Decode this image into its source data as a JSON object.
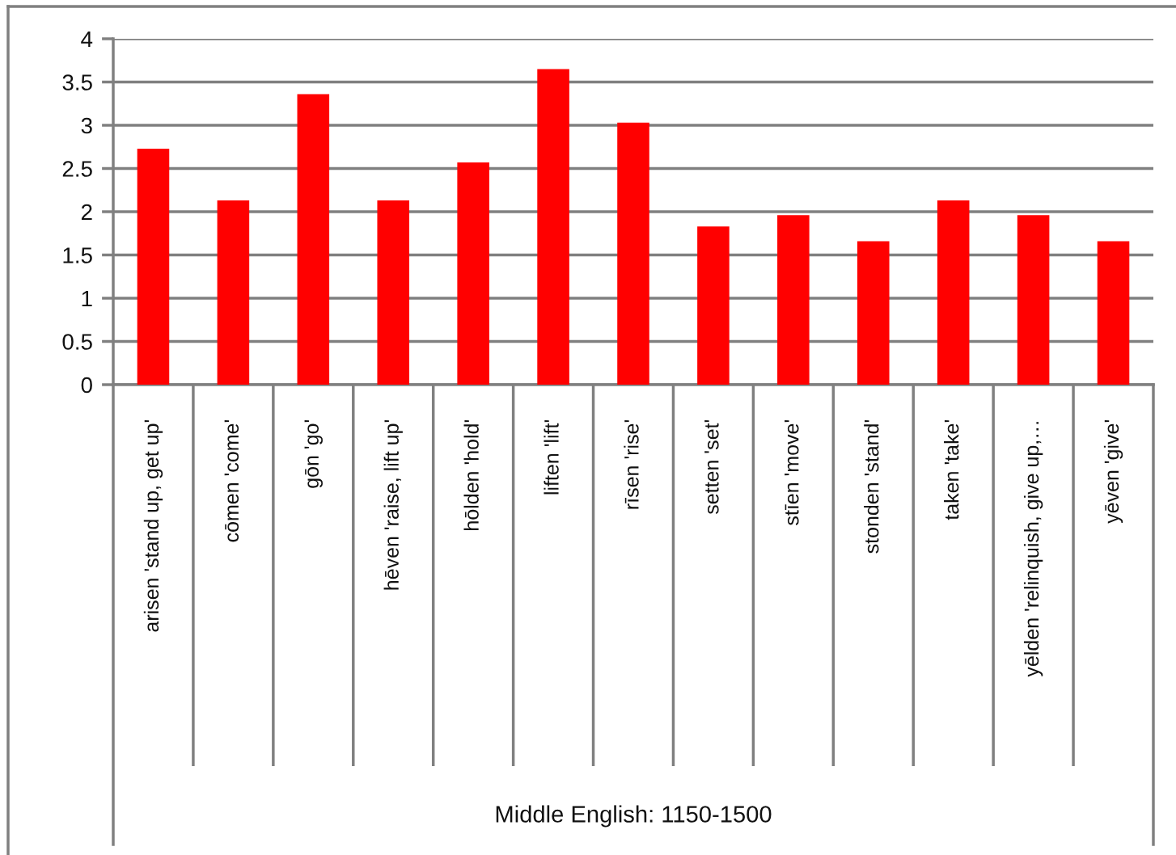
{
  "chart_data": {
    "type": "bar",
    "annotations": [
      "Middle English: 1150-1500"
    ],
    "categories": [
      "arisen 'stand up, get up'",
      "cōmen 'come'",
      "gōn 'go'",
      "hēven 'raise, lift up'",
      "hōlden 'hold'",
      "liften 'lift'",
      "rīsen 'rise'",
      "setten 'set'",
      "stīen 'move'",
      "stonden 'stand'",
      "taken 'take'",
      "yēlden 'relinquish, give up,…",
      "yēven 'give'"
    ],
    "values": [
      2.73,
      2.13,
      3.36,
      2.13,
      2.57,
      3.65,
      3.03,
      1.83,
      1.96,
      1.66,
      2.13,
      1.96,
      1.66
    ],
    "color": "#ff0000",
    "ylim": [
      0,
      4
    ],
    "yticks": [
      0,
      0.5,
      1,
      1.5,
      2,
      2.5,
      3,
      3.5,
      4
    ],
    "grid": "y",
    "legend": false
  }
}
